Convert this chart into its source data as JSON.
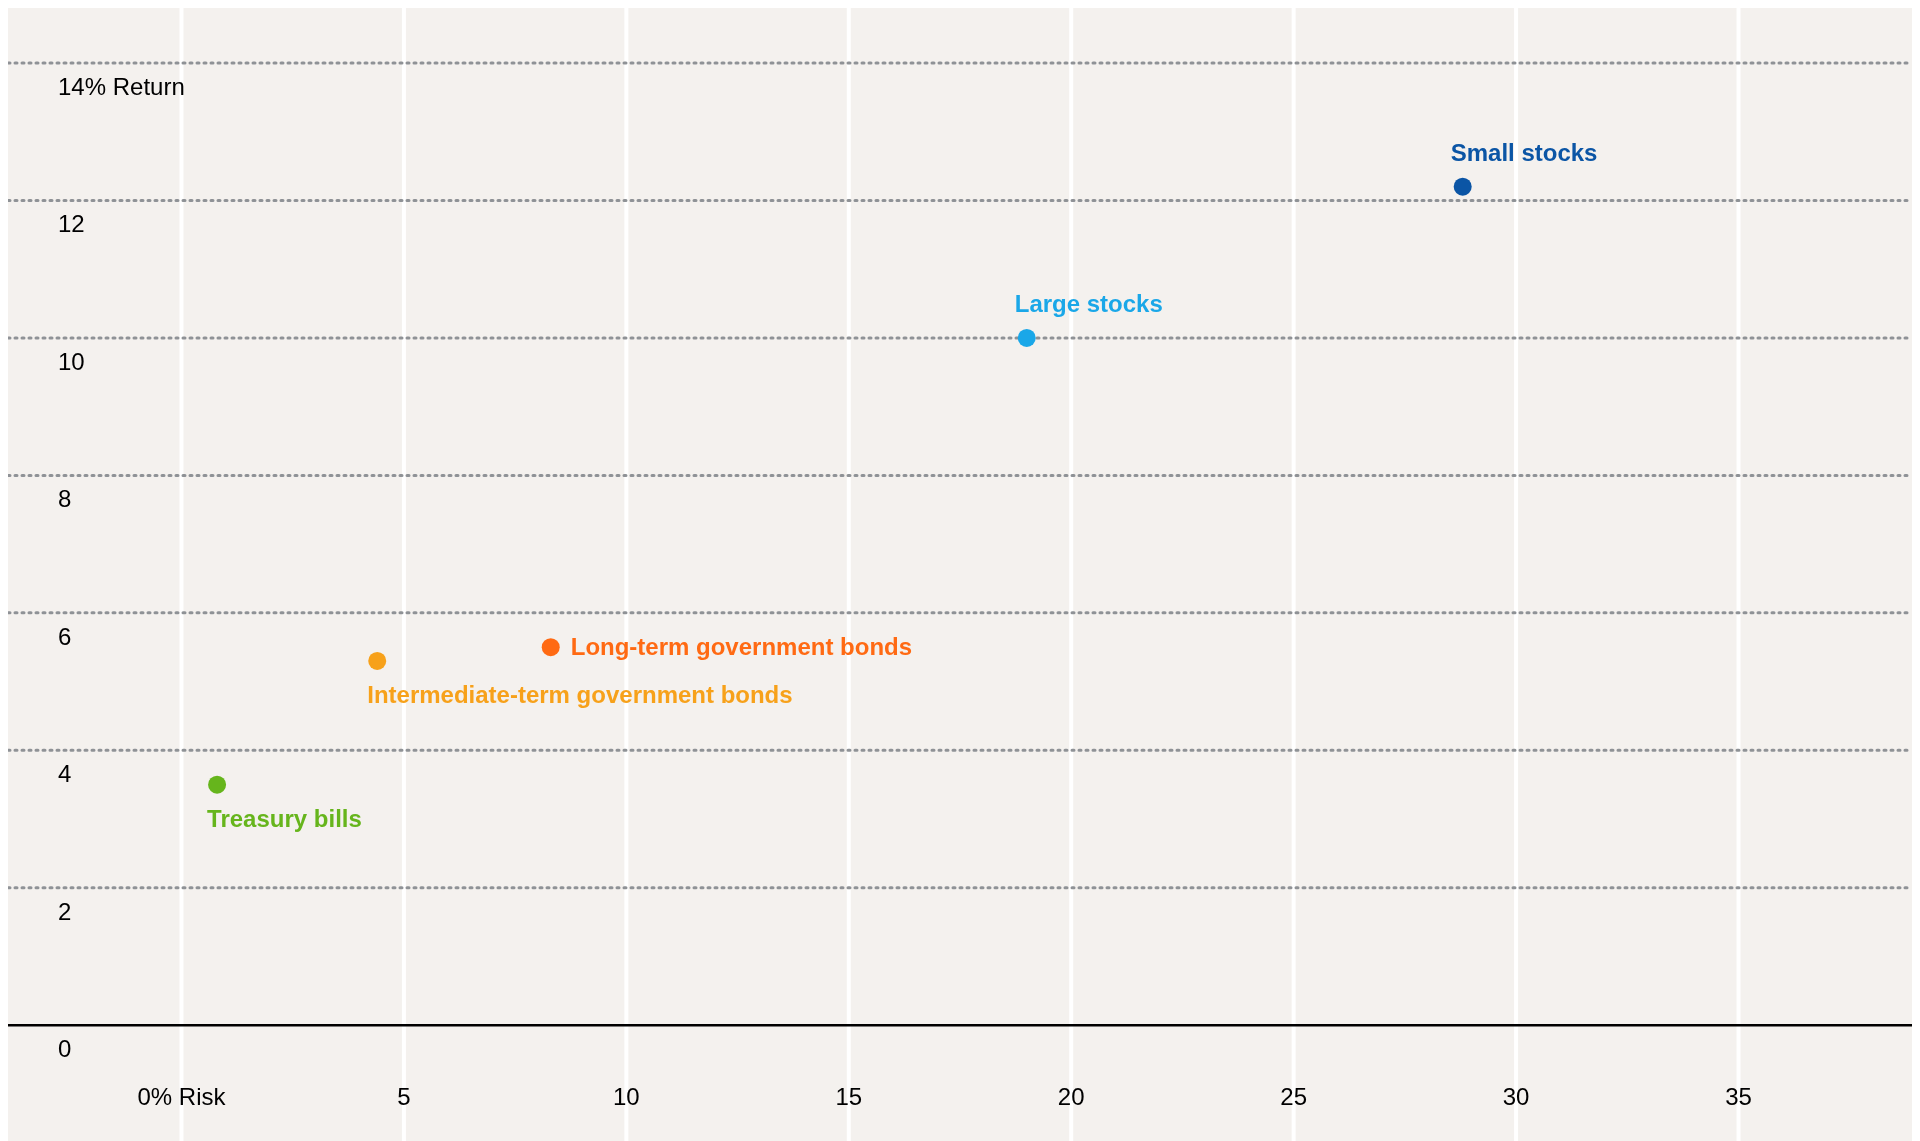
{
  "chart_data": {
    "type": "scatter",
    "xlim": [
      -3.9,
      38.9
    ],
    "ylim": [
      -1.8,
      14.8
    ],
    "xticks": [
      {
        "value": 0,
        "label": "0% Risk"
      },
      5,
      10,
      15,
      20,
      25,
      30,
      35
    ],
    "yticks": [
      0,
      2,
      4,
      6,
      8,
      10,
      12,
      {
        "value": 14,
        "label": "14% Return"
      }
    ],
    "grid": true,
    "marker": "circle",
    "series": [
      {
        "name": "Treasury bills",
        "color": "#66b51c",
        "x": [
          0.8
        ],
        "values": [
          3.5
        ]
      },
      {
        "name": "Intermediate-term government bonds",
        "color": "#f7a11a",
        "x": [
          4.4
        ],
        "values": [
          5.3
        ]
      },
      {
        "name": "Long-term government bonds",
        "color": "#ff6a13",
        "x": [
          8.3
        ],
        "values": [
          5.5
        ]
      },
      {
        "name": "Large stocks",
        "color": "#1aa7e8",
        "x": [
          19.0
        ],
        "values": [
          10.0
        ]
      },
      {
        "name": "Small stocks",
        "color": "#0b55a5",
        "x": [
          28.8
        ],
        "values": [
          12.2
        ]
      }
    ]
  }
}
